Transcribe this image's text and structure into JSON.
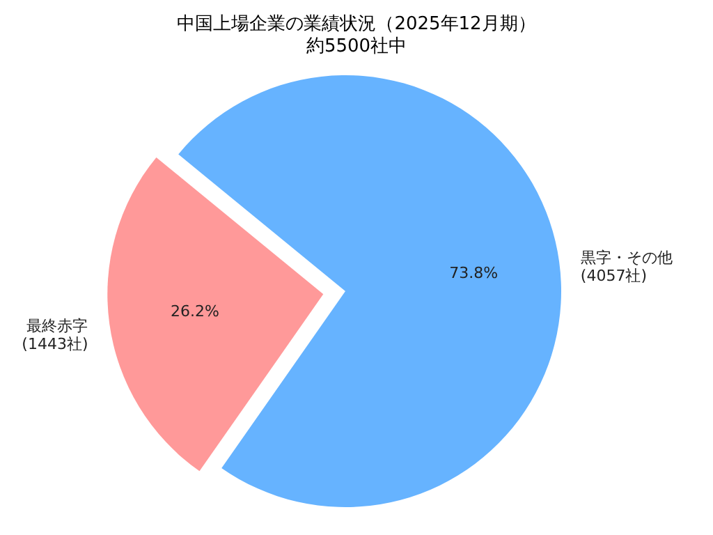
{
  "chart_data": {
    "type": "pie",
    "title": "中国上場企業の業績状況（2025年12月期）",
    "subtitle": "約5500社中",
    "categories": [
      "最終赤字\n(1443社)",
      "黒字・その他\n(4057社)"
    ],
    "values": [
      26.2,
      73.8
    ],
    "colors": [
      "#ff9999",
      "#66b3ff"
    ],
    "value_labels": [
      "26.2%",
      "73.8%"
    ]
  }
}
